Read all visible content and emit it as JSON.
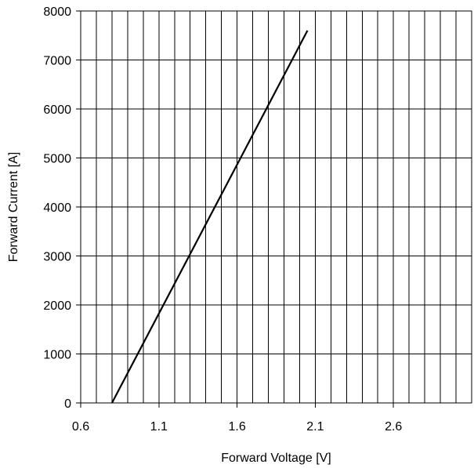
{
  "chart_data": {
    "type": "line",
    "title": "",
    "xlabel": "Forward Voltage [V]",
    "ylabel": "Forward Current [A]",
    "xlim": [
      0.6,
      3.1
    ],
    "ylim": [
      0,
      8000
    ],
    "x_tick_labels": [
      "0.6",
      "1.1",
      "1.6",
      "2.1",
      "2.6"
    ],
    "x_tick_values": [
      0.6,
      1.1,
      1.6,
      2.1,
      2.6
    ],
    "y_tick_labels": [
      "0",
      "1000",
      "2000",
      "3000",
      "4000",
      "5000",
      "6000",
      "7000",
      "8000"
    ],
    "y_tick_values": [
      0,
      1000,
      2000,
      3000,
      4000,
      5000,
      6000,
      7000,
      8000
    ],
    "x_grid_step": 0.1,
    "y_grid_step": 1000,
    "grid": true,
    "series": [
      {
        "color": "#000000",
        "x": [
          0.8,
          2.05
        ],
        "y": [
          0,
          7600
        ]
      }
    ]
  }
}
